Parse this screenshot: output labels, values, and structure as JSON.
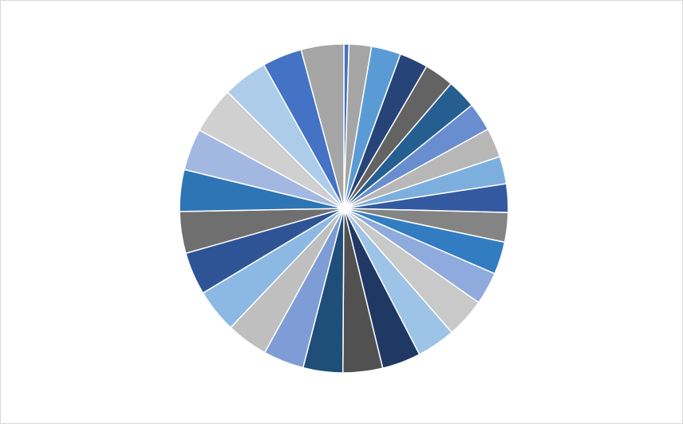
{
  "chart_data": {
    "type": "pie",
    "values": [
      0.5,
      2.2,
      2.9,
      2.8,
      2.9,
      2.9,
      2.8,
      2.9,
      2.7,
      2.8,
      2.9,
      3.2,
      3.2,
      3.9,
      3.8,
      3.8,
      3.9,
      3.9,
      4.0,
      4.1,
      4.3,
      4.2,
      4.1,
      4.1,
      4.1,
      4.6,
      4.4,
      3.9,
      4.2
    ],
    "colors": [
      "#4472c4",
      "#a5a5a5",
      "#5b9bd5",
      "#264478",
      "#636363",
      "#255e91",
      "#698ed0",
      "#b7b7b7",
      "#7cafdd",
      "#335aa1",
      "#848484",
      "#327dc2",
      "#8faadc",
      "#c9c9c9",
      "#9dc3e6",
      "#203864",
      "#515151",
      "#1f4e79",
      "#7e9dd6",
      "#bfbfbf",
      "#8bb9e3",
      "#2f5496",
      "#6f6f6f",
      "#2e75b6",
      "#a2b8e1",
      "#d0d0d0",
      "#acccea",
      "#4472c4",
      "#a5a5a5"
    ]
  }
}
